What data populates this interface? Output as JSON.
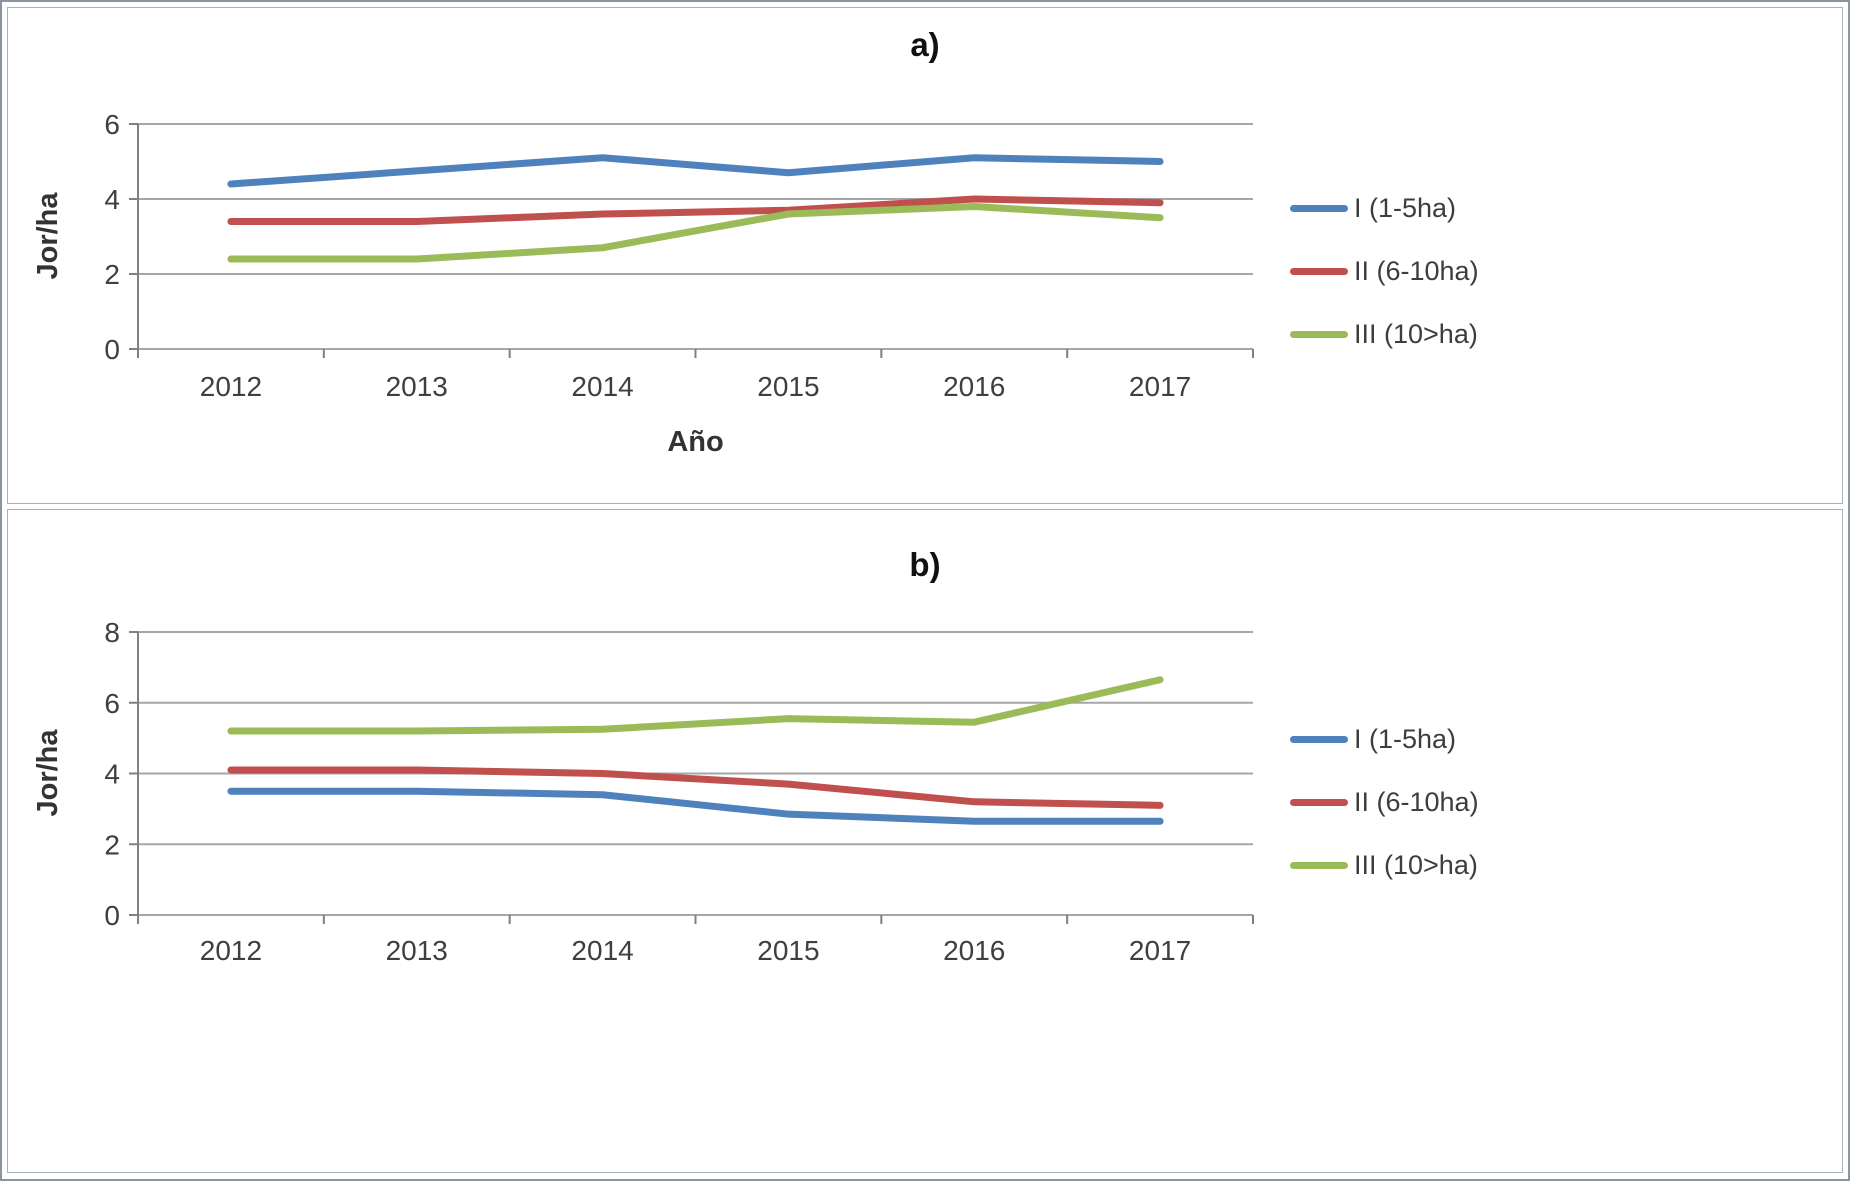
{
  "chart_data": [
    {
      "type": "line",
      "title": "a)",
      "ylabel": "Jor/ha",
      "xlabel": "Año",
      "categories": [
        "2012",
        "2013",
        "2014",
        "2015",
        "2016",
        "2017"
      ],
      "ylim": [
        0,
        6
      ],
      "yticks": [
        0,
        2,
        4,
        6
      ],
      "grid": true,
      "legend_position": "right",
      "series": [
        {
          "name": "I (1-5ha)",
          "color": "#4f81bd",
          "values": [
            4.4,
            4.75,
            5.1,
            4.7,
            5.1,
            5.0
          ]
        },
        {
          "name": "II (6-10ha)",
          "color": "#c0504d",
          "values": [
            3.4,
            3.4,
            3.6,
            3.7,
            4.0,
            3.9
          ]
        },
        {
          "name": "III (10>ha)",
          "color": "#9bbb59",
          "values": [
            2.4,
            2.4,
            2.7,
            3.6,
            3.8,
            3.5
          ]
        }
      ]
    },
    {
      "type": "line",
      "title": "b)",
      "ylabel": "Jor/ha",
      "categories": [
        "2012",
        "2013",
        "2014",
        "2015",
        "2016",
        "2017"
      ],
      "ylim": [
        0,
        8
      ],
      "yticks": [
        0,
        2,
        4,
        6,
        8
      ],
      "grid": true,
      "legend_position": "right",
      "series": [
        {
          "name": "I (1-5ha)",
          "color": "#4f81bd",
          "values": [
            3.5,
            3.5,
            3.4,
            2.85,
            2.65,
            2.65
          ]
        },
        {
          "name": "II (6-10ha)",
          "color": "#c0504d",
          "values": [
            4.1,
            4.1,
            4.0,
            3.7,
            3.2,
            3.1
          ]
        },
        {
          "name": "III (10>ha)",
          "color": "#9bbb59",
          "values": [
            5.2,
            5.2,
            5.25,
            5.55,
            5.45,
            6.65
          ]
        }
      ]
    }
  ]
}
